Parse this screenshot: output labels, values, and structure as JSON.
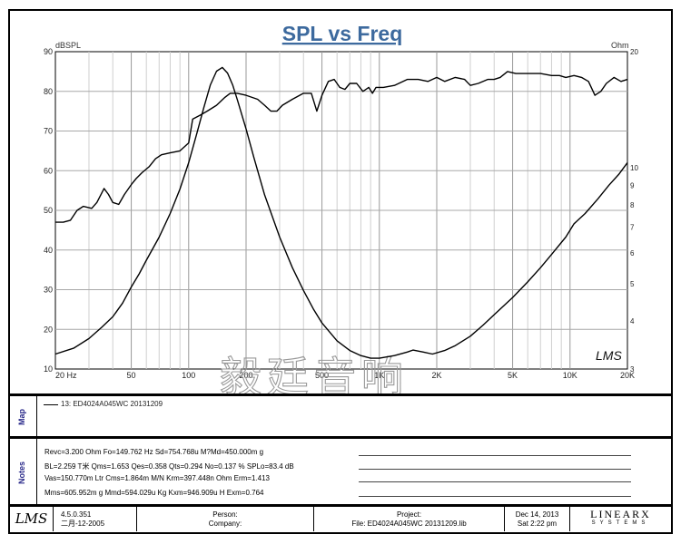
{
  "chart_data": {
    "type": "line",
    "title": "SPL vs Freq",
    "y_left_label": "dBSPL",
    "y_right_label": "Ohm",
    "x_scale": "log",
    "xlim": [
      20,
      20000
    ],
    "ylim": [
      10,
      90
    ],
    "y_right_scale": "log",
    "y_right_lim": [
      3,
      20
    ],
    "x_tick_labels": [
      {
        "value": 20,
        "label": "20  Hz"
      },
      {
        "value": 50,
        "label": "50"
      },
      {
        "value": 100,
        "label": "100"
      },
      {
        "value": 200,
        "label": "200"
      },
      {
        "value": 500,
        "label": "500"
      },
      {
        "value": 1000,
        "label": "1K"
      },
      {
        "value": 2000,
        "label": "2K"
      },
      {
        "value": 5000,
        "label": "5K"
      },
      {
        "value": 10000,
        "label": "10K"
      },
      {
        "value": 20000,
        "label": "20K"
      }
    ],
    "y_left_ticks": [
      10,
      20,
      30,
      40,
      50,
      60,
      70,
      80,
      90
    ],
    "y_right_ticks": [
      3,
      4,
      5,
      6,
      7,
      8,
      9,
      10,
      20
    ],
    "grid": true,
    "series": [
      {
        "axis": "left",
        "points": [
          [
            20,
            47
          ],
          [
            22,
            47
          ],
          [
            24,
            47.5
          ],
          [
            26,
            50
          ],
          [
            28,
            51
          ],
          [
            31,
            50.5
          ],
          [
            33,
            52
          ],
          [
            36,
            55.5
          ],
          [
            38,
            54
          ],
          [
            40,
            52
          ],
          [
            43,
            51.5
          ],
          [
            46,
            54
          ],
          [
            50,
            56.5
          ],
          [
            53,
            58
          ],
          [
            57,
            59.5
          ],
          [
            62,
            61
          ],
          [
            67,
            63
          ],
          [
            72,
            64
          ],
          [
            80,
            64.5
          ],
          [
            90,
            65
          ],
          [
            100,
            67
          ],
          [
            105,
            73
          ],
          [
            115,
            74
          ],
          [
            125,
            75
          ],
          [
            140,
            76.5
          ],
          [
            155,
            78.5
          ],
          [
            165,
            79.5
          ],
          [
            180,
            79.5
          ],
          [
            200,
            79
          ],
          [
            230,
            78
          ],
          [
            250,
            76.5
          ],
          [
            270,
            75
          ],
          [
            290,
            75
          ],
          [
            310,
            76.5
          ],
          [
            350,
            78
          ],
          [
            400,
            79.5
          ],
          [
            440,
            79.5
          ],
          [
            470,
            75
          ],
          [
            500,
            79
          ],
          [
            540,
            82.5
          ],
          [
            580,
            83
          ],
          [
            620,
            81
          ],
          [
            660,
            80.5
          ],
          [
            700,
            82
          ],
          [
            760,
            82
          ],
          [
            820,
            80
          ],
          [
            880,
            81
          ],
          [
            920,
            79.5
          ],
          [
            960,
            81
          ],
          [
            1050,
            81
          ],
          [
            1200,
            81.5
          ],
          [
            1400,
            83
          ],
          [
            1600,
            83
          ],
          [
            1800,
            82.5
          ],
          [
            2000,
            83.5
          ],
          [
            2200,
            82.5
          ],
          [
            2500,
            83.5
          ],
          [
            2800,
            83
          ],
          [
            3000,
            81.5
          ],
          [
            3300,
            82
          ],
          [
            3700,
            83
          ],
          [
            4000,
            83
          ],
          [
            4300,
            83.5
          ],
          [
            4700,
            85
          ],
          [
            5200,
            84.5
          ],
          [
            6000,
            84.5
          ],
          [
            7000,
            84.5
          ],
          [
            8000,
            84
          ],
          [
            8800,
            84
          ],
          [
            9500,
            83.5
          ],
          [
            10500,
            84
          ],
          [
            11500,
            83.5
          ],
          [
            12500,
            82.5
          ],
          [
            13500,
            79
          ],
          [
            14500,
            80
          ],
          [
            15500,
            82
          ],
          [
            17000,
            83.5
          ],
          [
            18500,
            82.5
          ],
          [
            20000,
            83
          ]
        ]
      },
      {
        "axis": "right",
        "points": [
          [
            20,
            3.28
          ],
          [
            25,
            3.4
          ],
          [
            30,
            3.6
          ],
          [
            35,
            3.85
          ],
          [
            40,
            4.1
          ],
          [
            45,
            4.45
          ],
          [
            50,
            4.9
          ],
          [
            55,
            5.3
          ],
          [
            60,
            5.75
          ],
          [
            70,
            6.6
          ],
          [
            80,
            7.6
          ],
          [
            90,
            8.8
          ],
          [
            100,
            10.3
          ],
          [
            110,
            12.2
          ],
          [
            120,
            14.3
          ],
          [
            130,
            16.4
          ],
          [
            140,
            17.8
          ],
          [
            150,
            18.2
          ],
          [
            160,
            17.6
          ],
          [
            170,
            16.4
          ],
          [
            180,
            15
          ],
          [
            200,
            12.6
          ],
          [
            220,
            10.6
          ],
          [
            250,
            8.5
          ],
          [
            300,
            6.6
          ],
          [
            350,
            5.5
          ],
          [
            400,
            4.8
          ],
          [
            450,
            4.3
          ],
          [
            500,
            3.95
          ],
          [
            600,
            3.55
          ],
          [
            700,
            3.35
          ],
          [
            800,
            3.25
          ],
          [
            900,
            3.2
          ],
          [
            1000,
            3.2
          ],
          [
            1200,
            3.25
          ],
          [
            1400,
            3.32
          ],
          [
            1500,
            3.36
          ],
          [
            1700,
            3.32
          ],
          [
            1900,
            3.28
          ],
          [
            2200,
            3.35
          ],
          [
            2500,
            3.45
          ],
          [
            3000,
            3.65
          ],
          [
            3500,
            3.9
          ],
          [
            4000,
            4.15
          ],
          [
            5000,
            4.6
          ],
          [
            6000,
            5.05
          ],
          [
            7000,
            5.5
          ],
          [
            8000,
            5.95
          ],
          [
            9500,
            6.6
          ],
          [
            10500,
            7.15
          ],
          [
            12000,
            7.6
          ],
          [
            14000,
            8.3
          ],
          [
            16000,
            9
          ],
          [
            18000,
            9.6
          ],
          [
            20000,
            10.3
          ]
        ]
      }
    ],
    "watermark": "毅廷音响"
  },
  "map": {
    "side_label": "Map",
    "legend_entry": "13: ED4024A045WC   20131209"
  },
  "notes": {
    "side_label": "Notes",
    "lines": [
      "Revc=3.200 Ohm  Fo=149.762 Hz  Sd=754.768u M?Md=450.000m g",
      "BL=2.259 T米  Qms=1.653  Qes=0.358  Qts=0.294  No=0.137 %  SPLo=83.4 dB",
      "Vas=150.770m Ltr  Cms=1.864m M/N  Krm=397.448n Ohm  Erm=1.413",
      "Mms=605.952m g  Mmd=594.029u Kg  Kxm=946.909u H  Exm=0.764"
    ]
  },
  "footer": {
    "logo": "LMS",
    "version": "4.5.0.351",
    "version_date": "二月-12-2005",
    "person_label": "Person:",
    "company_label": "Company:",
    "project_label": "Project:",
    "file_label": "File: ED4024A045WC  20131209.lib",
    "date": "Dec 14, 2013",
    "time": "Sat  2:22 pm",
    "brand": "LINEARX",
    "brand_sub": "SYSTEMS"
  }
}
